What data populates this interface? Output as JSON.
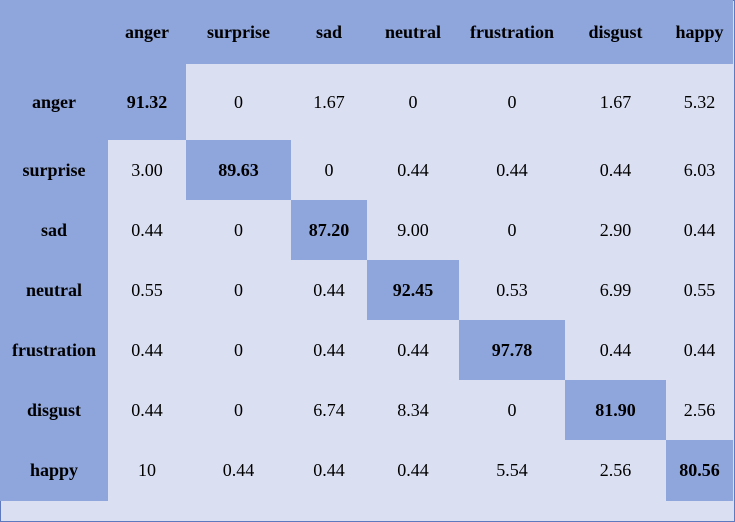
{
  "chart_data": {
    "type": "table",
    "column_labels": [
      "anger",
      "surprise",
      "sad",
      "neutral",
      "frustration",
      "disgust",
      "happy"
    ],
    "row_labels": [
      "anger",
      "surprise",
      "sad",
      "neutral",
      "frustration",
      "disgust",
      "happy"
    ],
    "cells": [
      [
        "91.32",
        "0",
        "1.67",
        "0",
        "0",
        "1.67",
        "5.32"
      ],
      [
        "3.00",
        "89.63",
        "0",
        "0.44",
        "0.44",
        "0.44",
        "6.03"
      ],
      [
        "0.44",
        "0",
        "87.20",
        "9.00",
        "0",
        "2.90",
        "0.44"
      ],
      [
        "0.55",
        "0",
        "0.44",
        "92.45",
        "0.53",
        "6.99",
        "0.55"
      ],
      [
        "0.44",
        "0",
        "0.44",
        "0.44",
        "97.78",
        "0.44",
        "0.44"
      ],
      [
        "0.44",
        "0",
        "6.74",
        "8.34",
        "0",
        "81.90",
        "2.56"
      ],
      [
        "10",
        "0.44",
        "0.44",
        "0.44",
        "5.54",
        "2.56",
        "80.56"
      ]
    ],
    "colors": {
      "header": "#8fa6dc",
      "diagonal": "#8fa6dc",
      "cell": "#dadff1",
      "border": "#5f79bf"
    }
  }
}
